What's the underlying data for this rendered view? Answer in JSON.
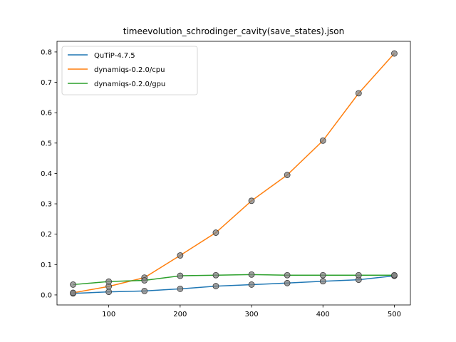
{
  "chart_data": {
    "type": "line",
    "title": "timeevolution_schrodinger_cavity(save_states).json",
    "xlabel": "",
    "ylabel": "",
    "x": [
      50,
      100,
      150,
      200,
      250,
      300,
      350,
      400,
      450,
      500
    ],
    "xticks": [
      100,
      200,
      300,
      400,
      500
    ],
    "yticks": [
      0.0,
      0.1,
      0.2,
      0.3,
      0.4,
      0.5,
      0.6,
      0.7,
      0.8
    ],
    "xtick_labels": [
      "100",
      "200",
      "300",
      "400",
      "500"
    ],
    "ytick_labels": [
      "0.0",
      "0.1",
      "0.2",
      "0.3",
      "0.4",
      "0.5",
      "0.6",
      "0.7",
      "0.8"
    ],
    "xlim": [
      27.5,
      522.5
    ],
    "ylim": [
      -0.033,
      0.835
    ],
    "grid": false,
    "legend_position": "upper-left",
    "marker_color": "#808080",
    "series": [
      {
        "name": "QuTiP-4.7.5",
        "color": "#1f77b4",
        "values": [
          0.005,
          0.01,
          0.013,
          0.02,
          0.029,
          0.034,
          0.039,
          0.045,
          0.05,
          0.063
        ]
      },
      {
        "name": "dynamiqs-0.2.0/cpu",
        "color": "#ff7f0e",
        "values": [
          0.007,
          0.028,
          0.057,
          0.13,
          0.205,
          0.31,
          0.395,
          0.508,
          0.664,
          0.795
        ]
      },
      {
        "name": "dynamiqs-0.2.0/gpu",
        "color": "#2ca02c",
        "values": [
          0.034,
          0.044,
          0.048,
          0.063,
          0.065,
          0.067,
          0.065,
          0.065,
          0.065,
          0.065
        ]
      }
    ]
  }
}
